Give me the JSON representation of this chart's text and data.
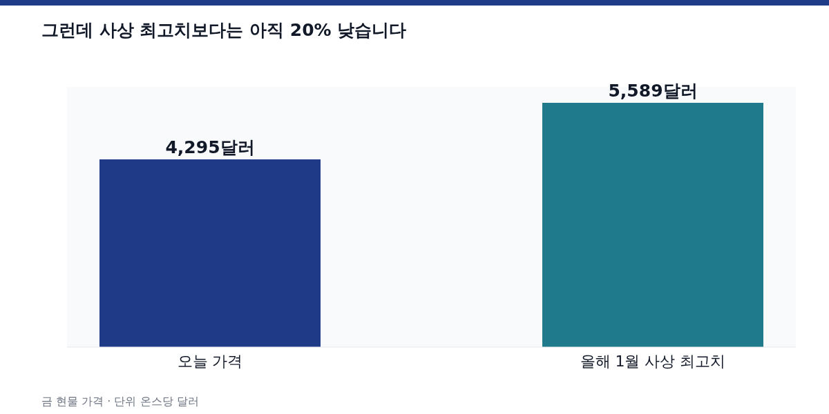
{
  "chart_data": {
    "type": "bar",
    "title": "그런데 사상 최고치보다는 아직 20% 낮습니다",
    "categories": [
      "오늘 가격",
      "올해 1월 사상 최고치"
    ],
    "values": [
      4295,
      5589
    ],
    "colors": [
      "#1f3b87",
      "#1f7a8c"
    ],
    "value_labels": [
      "4,295달러",
      "5,589달러"
    ],
    "annotations": [
      "금 현물 가격 · 단위 온스당 달러"
    ]
  }
}
